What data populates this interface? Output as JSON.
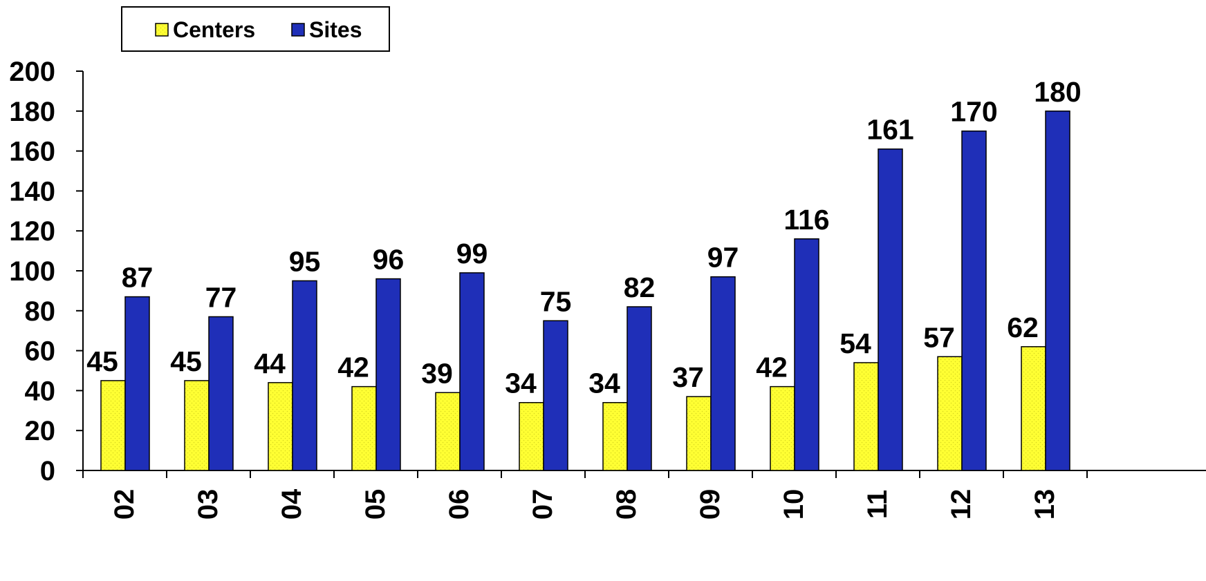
{
  "chart_data": {
    "type": "bar",
    "categories": [
      "02",
      "03",
      "04",
      "05",
      "06",
      "07",
      "08",
      "09",
      "10",
      "11",
      "12",
      "13"
    ],
    "series": [
      {
        "name": "Centers",
        "values": [
          45,
          45,
          44,
          42,
          39,
          34,
          34,
          37,
          42,
          54,
          57,
          62
        ],
        "color": "#ffff33"
      },
      {
        "name": "Sites",
        "values": [
          87,
          77,
          95,
          96,
          99,
          75,
          82,
          97,
          116,
          161,
          170,
          180
        ],
        "color": "#1f2fb8"
      }
    ],
    "ylim": [
      0,
      200
    ],
    "yticks": [
      0,
      20,
      40,
      60,
      80,
      100,
      120,
      140,
      160,
      180,
      200
    ],
    "title": "",
    "xlabel": "",
    "ylabel": "",
    "grid": false,
    "legend_position": "top-left",
    "data_labels": true
  }
}
